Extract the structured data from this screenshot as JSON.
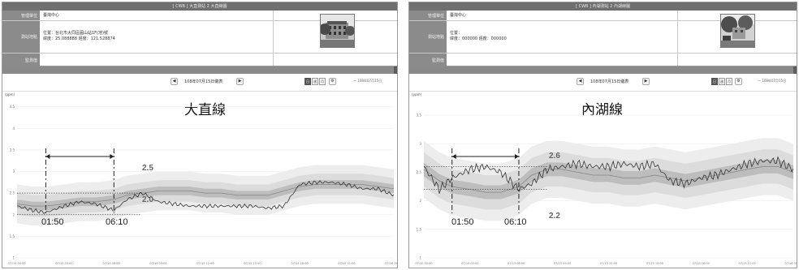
{
  "left": {
    "window_title": "[ CWB ] 大直測站 2 大直線圖",
    "info": [
      {
        "key": "管理單位",
        "value": "臺灣中心"
      },
      {
        "key": "測站地點",
        "value": "位置：台北市大同區圓山站1F(地)號",
        "value2": "緯度：25.088888    經度：121.528874"
      },
      {
        "key": "監測值",
        "value": ""
      }
    ],
    "date_label": "108年07月15日儀表",
    "prev_label": "◀",
    "next_label": "▶",
    "seg_labels": [
      "日",
      "週",
      "月"
    ],
    "legend_label": "— 108年07月15日",
    "unit_label": "(ppm)",
    "chart_title": "大直線",
    "time_start": "01:50",
    "time_end": "06:10",
    "value_high": "2.5",
    "value_low": "2.0",
    "y_ticks": [
      "4.5",
      "4",
      "3.5",
      "3",
      "2.5",
      "2",
      "1.5",
      "1"
    ],
    "x_ticks": [
      "07/15 00:00",
      "07/15 03:00",
      "07/15 06:00",
      "07/15 09:00",
      "07/15 12:00",
      "07/15 15:00",
      "07/15 18:00",
      "07/15 21:00",
      "07/16 00:00"
    ]
  },
  "right": {
    "window_title": "[ CWB ] 內湖測站 2 內湖線圖",
    "info": [
      {
        "key": "管理單位",
        "value": "臺灣中心"
      },
      {
        "key": "測站地點",
        "value": "位置：",
        "value2": "緯度：000000    經度：000000"
      },
      {
        "key": "監測值",
        "value": ""
      }
    ],
    "date_label": "108年07月15日儀表",
    "prev_label": "◀",
    "next_label": "▶",
    "seg_labels": [
      "日",
      "週",
      "月"
    ],
    "legend_label": "— 108年07月15日",
    "unit_label": "(ppm)",
    "chart_title": "內湖線",
    "time_start": "01:50",
    "time_end": "06:10",
    "value_high": "2.6",
    "value_low": "2.2",
    "y_ticks": [
      "3.5",
      "3",
      "2.5",
      "2",
      "1.5",
      "1"
    ],
    "x_ticks": [
      "07/15 00:00",
      "07/15 03:00",
      "07/15 06:00",
      "07/15 09:00",
      "07/15 12:00",
      "07/15 15:00",
      "07/15 18:00",
      "07/15 21:00",
      "07/16 00:00"
    ]
  },
  "chart_data": [
    {
      "type": "line",
      "title": "大直線",
      "ylabel": "(ppm)",
      "ylim": [
        1,
        4.7
      ],
      "x": [
        0,
        1,
        1.83,
        3,
        4,
        5,
        6.17,
        7,
        8,
        9,
        10,
        11,
        12,
        13,
        14,
        15,
        16,
        17,
        18,
        19,
        20,
        21,
        22,
        23,
        24
      ],
      "series": [
        {
          "values": [
            2.2,
            2.1,
            2.05,
            2.2,
            2.3,
            2.25,
            2.1,
            2.35,
            2.5,
            2.3,
            2.25,
            2.2,
            2.2,
            2.2,
            2.2,
            2.2,
            2.15,
            2.2,
            2.7,
            2.75,
            2.75,
            2.7,
            2.6,
            2.6,
            2.45
          ]
        },
        {
          "values": [
            2.25,
            2.2,
            2.2,
            2.25,
            2.3,
            2.3,
            2.35,
            2.45,
            2.5,
            2.55,
            2.55,
            2.55,
            2.5,
            2.5,
            2.45,
            2.45,
            2.45,
            2.55,
            2.65,
            2.7,
            2.7,
            2.7,
            2.7,
            2.65,
            2.6
          ]
        }
      ]
    },
    {
      "type": "line",
      "title": "內湖線",
      "ylabel": "(ppm)",
      "ylim": [
        1,
        3.8
      ],
      "x": [
        0,
        1,
        1.83,
        3,
        4,
        5,
        6.17,
        7,
        8,
        9,
        10,
        11,
        12,
        13,
        14,
        15,
        16,
        17,
        18,
        19,
        20,
        21,
        22,
        23,
        24
      ],
      "series": [
        {
          "values": [
            2.6,
            2.2,
            2.4,
            2.55,
            2.6,
            2.5,
            2.2,
            2.3,
            2.55,
            2.6,
            2.65,
            2.6,
            2.6,
            2.65,
            2.6,
            2.65,
            2.35,
            2.3,
            2.4,
            2.45,
            2.55,
            2.65,
            2.7,
            2.7,
            2.55
          ]
        },
        {
          "values": [
            2.55,
            2.35,
            2.25,
            2.2,
            2.15,
            2.15,
            2.25,
            2.45,
            2.55,
            2.55,
            2.5,
            2.45,
            2.45,
            2.4,
            2.4,
            2.45,
            2.4,
            2.35,
            2.4,
            2.45,
            2.5,
            2.55,
            2.6,
            2.6,
            2.5
          ]
        }
      ]
    }
  ],
  "colors": {
    "header_bg": "#6f6f6f",
    "key_bg": "#8b8b8b",
    "band_outer": "#ededed",
    "band_mid": "#dcdcdc",
    "band_inner": "#bdbdbd",
    "line_dark": "#333333",
    "line_mean": "#888888"
  }
}
